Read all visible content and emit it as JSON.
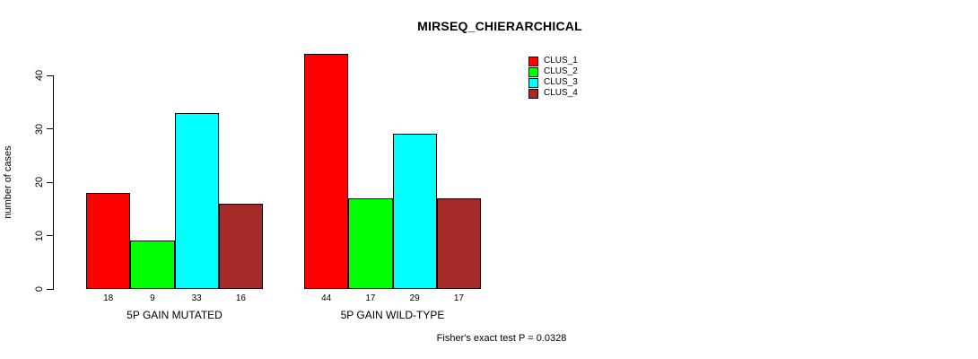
{
  "title": "MIRSEQ_CHIERARCHICAL",
  "ylabel": "number of cases",
  "footer": "Fisher's exact test P = 0.0328",
  "chart_data": {
    "type": "bar",
    "title": "MIRSEQ_CHIERARCHICAL",
    "xlabel": "",
    "ylabel": "number of cases",
    "categories": [
      "5P GAIN MUTATED",
      "5P GAIN WILD-TYPE"
    ],
    "series": [
      {
        "name": "CLUS_1",
        "color": "#FF0000",
        "values": [
          18,
          44
        ]
      },
      {
        "name": "CLUS_2",
        "color": "#00FF00",
        "values": [
          9,
          17
        ]
      },
      {
        "name": "CLUS_3",
        "color": "#00FFFF",
        "values": [
          33,
          29
        ]
      },
      {
        "name": "CLUS_4",
        "color": "#A52A2A",
        "values": [
          16,
          17
        ]
      }
    ],
    "yticks": [
      0,
      10,
      20,
      30,
      40
    ],
    "ylim": [
      0,
      44
    ],
    "bar_value_labels": true,
    "legend_position": "top-right",
    "grid": false,
    "annotation": "Fisher's exact test P = 0.0328"
  }
}
